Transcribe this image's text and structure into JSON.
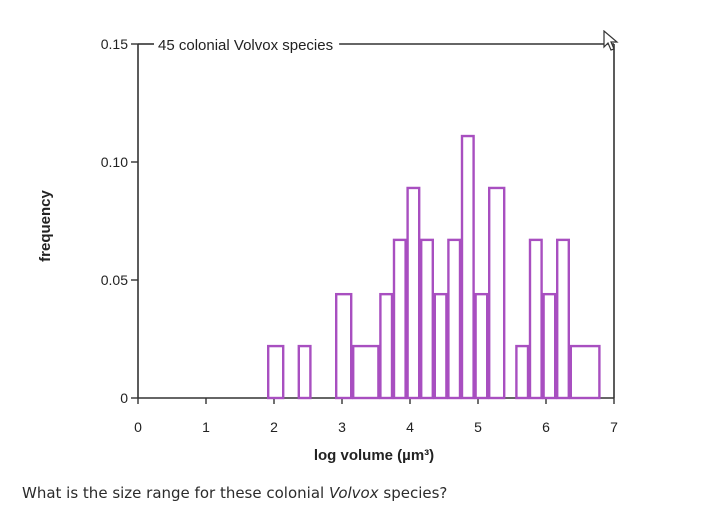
{
  "chart_data": {
    "type": "histogram",
    "title": "45 colonial Volvox species",
    "xlabel": "log volume (µm³)",
    "ylabel": "frequency",
    "xlim": [
      0,
      7
    ],
    "ylim": [
      0,
      0.15
    ],
    "x_ticks": [
      "0",
      "1",
      "2",
      "3",
      "4",
      "5",
      "6",
      "7"
    ],
    "y_ticks": [
      "0",
      "0.05",
      "0.10",
      "0.15"
    ],
    "bin_width": 0.25,
    "bins": [
      {
        "x0": 1.9,
        "x1": 2.15,
        "value": 0.022
      },
      {
        "x0": 2.15,
        "x1": 2.35,
        "value": 0.0
      },
      {
        "x0": 2.35,
        "x1": 2.55,
        "value": 0.022
      },
      {
        "x0": 2.55,
        "x1": 2.9,
        "value": 0.0
      },
      {
        "x0": 2.9,
        "x1": 3.15,
        "value": 0.044
      },
      {
        "x0": 3.15,
        "x1": 3.55,
        "value": 0.022
      },
      {
        "x0": 3.55,
        "x1": 3.75,
        "value": 0.044
      },
      {
        "x0": 3.75,
        "x1": 3.95,
        "value": 0.067
      },
      {
        "x0": 3.95,
        "x1": 4.15,
        "value": 0.089
      },
      {
        "x0": 4.15,
        "x1": 4.35,
        "value": 0.067
      },
      {
        "x0": 4.35,
        "x1": 4.55,
        "value": 0.044
      },
      {
        "x0": 4.55,
        "x1": 4.75,
        "value": 0.067
      },
      {
        "x0": 4.75,
        "x1": 4.95,
        "value": 0.111
      },
      {
        "x0": 4.95,
        "x1": 5.15,
        "value": 0.044
      },
      {
        "x0": 5.15,
        "x1": 5.4,
        "value": 0.089
      },
      {
        "x0": 5.4,
        "x1": 5.55,
        "value": 0.0
      },
      {
        "x0": 5.55,
        "x1": 5.75,
        "value": 0.022
      },
      {
        "x0": 5.75,
        "x1": 5.95,
        "value": 0.067
      },
      {
        "x0": 5.95,
        "x1": 6.15,
        "value": 0.044
      },
      {
        "x0": 6.15,
        "x1": 6.35,
        "value": 0.067
      },
      {
        "x0": 6.35,
        "x1": 6.8,
        "value": 0.022
      }
    ],
    "grid": false,
    "line_color": "#a84fc0"
  },
  "question": {
    "before": "What is the size range for these colonial ",
    "emphasis": "Volvox",
    "after": " species?"
  },
  "icons": {
    "cursor": "mouse-cursor-icon"
  }
}
